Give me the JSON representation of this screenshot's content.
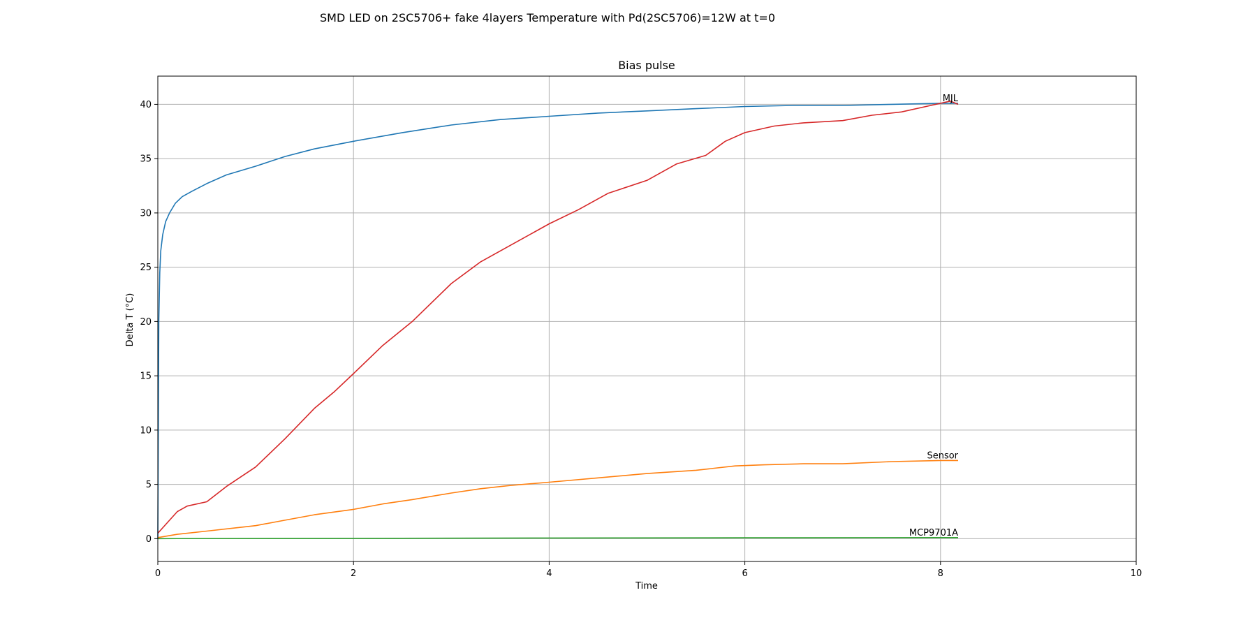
{
  "figure_title": "SMD LED on 2SC5706+ fake 4layers Temperature with Pd(2SC5706)=12W at t=0",
  "chart_data": {
    "type": "line",
    "title": "Bias pulse",
    "xlabel": "Time",
    "ylabel": "Delta T (°C)",
    "xlim": [
      0,
      10
    ],
    "ylim": [
      -2.1,
      42.6
    ],
    "x_ticks": [
      0,
      2,
      4,
      6,
      8,
      10
    ],
    "y_ticks": [
      0,
      5,
      10,
      15,
      20,
      25,
      30,
      35,
      40
    ],
    "grid": true,
    "series": [
      {
        "name": "MJL",
        "color": "#1f77b4",
        "x": [
          0,
          0.005,
          0.01,
          0.02,
          0.03,
          0.05,
          0.08,
          0.12,
          0.18,
          0.25,
          0.35,
          0.5,
          0.7,
          1.0,
          1.3,
          1.6,
          2.0,
          2.5,
          3.0,
          3.5,
          4.0,
          4.5,
          5.0,
          5.5,
          6.0,
          6.5,
          7.0,
          7.5,
          8.0,
          8.18
        ],
        "y": [
          0,
          10.0,
          20.0,
          24.5,
          26.5,
          28.0,
          29.2,
          30.0,
          30.9,
          31.5,
          32.0,
          32.7,
          33.5,
          34.3,
          35.2,
          35.9,
          36.6,
          37.4,
          38.1,
          38.6,
          38.9,
          39.2,
          39.4,
          39.6,
          39.8,
          39.9,
          39.9,
          40.0,
          40.1,
          40.1
        ]
      },
      {
        "name": "",
        "color": "#d62728",
        "x": [
          0,
          0.1,
          0.2,
          0.3,
          0.5,
          0.7,
          1.0,
          1.3,
          1.6,
          1.8,
          2.0,
          2.3,
          2.6,
          3.0,
          3.3,
          3.6,
          4.0,
          4.3,
          4.6,
          5.0,
          5.3,
          5.6,
          5.8,
          6.0,
          6.3,
          6.6,
          7.0,
          7.3,
          7.6,
          7.9,
          8.1,
          8.18
        ],
        "y": [
          0.5,
          1.5,
          2.5,
          3.0,
          3.4,
          4.8,
          6.6,
          9.2,
          12.0,
          13.5,
          15.2,
          17.8,
          20.0,
          23.5,
          25.5,
          27.0,
          29.0,
          30.3,
          31.8,
          33.0,
          34.5,
          35.3,
          36.6,
          37.4,
          38.0,
          38.3,
          38.5,
          39.0,
          39.3,
          39.9,
          40.3,
          40.0
        ]
      },
      {
        "name": "Sensor",
        "color": "#ff7f0e",
        "x": [
          0,
          0.2,
          0.5,
          0.8,
          1.0,
          1.3,
          1.6,
          2.0,
          2.3,
          2.6,
          3.0,
          3.3,
          3.6,
          4.0,
          4.5,
          5.0,
          5.5,
          5.9,
          6.2,
          6.6,
          7.0,
          7.5,
          8.0,
          8.18
        ],
        "y": [
          0.1,
          0.4,
          0.7,
          1.0,
          1.2,
          1.7,
          2.2,
          2.7,
          3.2,
          3.6,
          4.2,
          4.6,
          4.9,
          5.2,
          5.6,
          6.0,
          6.3,
          6.7,
          6.8,
          6.9,
          6.9,
          7.1,
          7.2,
          7.2
        ]
      },
      {
        "name": "MCP9701A",
        "color": "#2ca02c",
        "x": [
          0,
          2,
          4,
          6,
          8,
          8.18
        ],
        "y": [
          0.0,
          0.03,
          0.06,
          0.08,
          0.1,
          0.1
        ]
      }
    ]
  }
}
